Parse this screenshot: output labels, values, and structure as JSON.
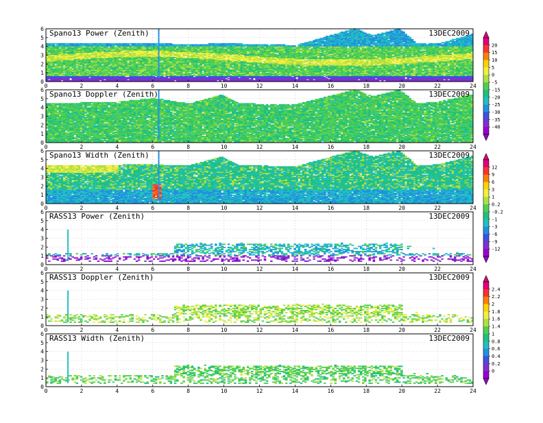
{
  "chart_data": [
    {
      "type": "heatmap",
      "title": "Spano13 Power (Zenith)",
      "date": "13DEC2009",
      "xlim": [
        0,
        24
      ],
      "ylim": [
        0,
        6
      ],
      "xticks": [
        "0",
        "2",
        "4",
        "6",
        "8",
        "10",
        "12",
        "14",
        "16",
        "18",
        "20",
        "22",
        "24"
      ],
      "yticks": [
        "0",
        "1",
        "2",
        "3",
        "4",
        "5",
        "6"
      ],
      "fill": "dense",
      "profile": "power",
      "top": [
        [
          0,
          4.3
        ],
        [
          6,
          4.3
        ],
        [
          8,
          4.2
        ],
        [
          10,
          4.3
        ],
        [
          14,
          4.1
        ],
        [
          17.3,
          6.0
        ],
        [
          18.3,
          5.2
        ],
        [
          19.8,
          6.0
        ],
        [
          20.8,
          4.3
        ],
        [
          22,
          4.3
        ],
        [
          24,
          5.4
        ]
      ]
    },
    {
      "type": "heatmap",
      "title": "Spano13 Doppler (Zenith)",
      "date": "13DEC2009",
      "xlim": [
        0,
        24
      ],
      "ylim": [
        0,
        6
      ],
      "xticks": [
        "0",
        "2",
        "4",
        "6",
        "8",
        "10",
        "12",
        "14",
        "16",
        "18",
        "20",
        "22",
        "24"
      ],
      "yticks": [
        "0",
        "1",
        "2",
        "3",
        "4",
        "5",
        "6"
      ],
      "fill": "dense",
      "profile": "doppler",
      "top": [
        [
          0,
          4.4
        ],
        [
          4,
          4.6
        ],
        [
          6,
          5.0
        ],
        [
          8,
          4.4
        ],
        [
          9.8,
          5.4
        ],
        [
          10.8,
          4.4
        ],
        [
          14,
          4.3
        ],
        [
          17.3,
          6.0
        ],
        [
          18.3,
          5.2
        ],
        [
          19.8,
          6.0
        ],
        [
          20.8,
          4.4
        ],
        [
          22,
          4.6
        ],
        [
          24,
          5.5
        ]
      ]
    },
    {
      "type": "heatmap",
      "title": "Spano13 Width (Zenith)",
      "date": "13DEC2009",
      "xlim": [
        0,
        24
      ],
      "ylim": [
        0,
        6
      ],
      "xticks": [
        "0",
        "2",
        "4",
        "6",
        "8",
        "10",
        "12",
        "14",
        "16",
        "18",
        "20",
        "22",
        "24"
      ],
      "yticks": [
        "0",
        "1",
        "2",
        "3",
        "4",
        "5",
        "6"
      ],
      "fill": "dense",
      "profile": "width",
      "top": [
        [
          0,
          4.3
        ],
        [
          6,
          4.4
        ],
        [
          8,
          4.3
        ],
        [
          9.8,
          5.3
        ],
        [
          10.8,
          4.3
        ],
        [
          14,
          4.2
        ],
        [
          17.3,
          6.0
        ],
        [
          18.3,
          5.3
        ],
        [
          19.8,
          6.0
        ],
        [
          20.8,
          4.3
        ],
        [
          22,
          4.4
        ],
        [
          24,
          5.4
        ]
      ]
    },
    {
      "type": "heatmap",
      "title": "RASS13 Power (Zenith)",
      "date": "13DEC2009",
      "xlim": [
        0,
        24
      ],
      "ylim": [
        0,
        6
      ],
      "xticks": [
        "0",
        "2",
        "4",
        "6",
        "8",
        "10",
        "12",
        "14",
        "16",
        "18",
        "20",
        "22",
        "24"
      ],
      "yticks": [
        "0",
        "1",
        "2",
        "3",
        "4",
        "5",
        "6"
      ],
      "fill": "sparse",
      "profile": "rasspower",
      "top": [
        [
          0,
          1.2
        ],
        [
          7,
          1.2
        ],
        [
          7.2,
          2.5
        ],
        [
          20,
          2.5
        ],
        [
          24,
          1.0
        ]
      ]
    },
    {
      "type": "heatmap",
      "title": "RASS13 Doppler (Zenith)",
      "date": "13DEC2009",
      "xlim": [
        0,
        24
      ],
      "ylim": [
        0,
        6
      ],
      "xticks": [
        "0",
        "2",
        "4",
        "6",
        "8",
        "10",
        "12",
        "14",
        "16",
        "18",
        "20",
        "22",
        "24"
      ],
      "yticks": [
        "0",
        "1",
        "2",
        "3",
        "4",
        "5",
        "6"
      ],
      "fill": "sparse",
      "profile": "rassdoppler",
      "top": [
        [
          0,
          1.2
        ],
        [
          7,
          1.2
        ],
        [
          7.2,
          2.4
        ],
        [
          20,
          2.4
        ],
        [
          24,
          0.8
        ]
      ]
    },
    {
      "type": "heatmap",
      "title": "RASS13 Width (Zenith)",
      "date": "13DEC2009",
      "xlim": [
        0,
        24
      ],
      "ylim": [
        0,
        6
      ],
      "xticks": [
        "0",
        "2",
        "4",
        "6",
        "8",
        "10",
        "12",
        "14",
        "16",
        "18",
        "20",
        "22",
        "24"
      ],
      "yticks": [
        "0",
        "1",
        "2",
        "3",
        "4",
        "5",
        "6"
      ],
      "fill": "sparse",
      "profile": "rasswidth",
      "top": [
        [
          0,
          1.2
        ],
        [
          7,
          1.2
        ],
        [
          7.2,
          2.4
        ],
        [
          20,
          2.4
        ],
        [
          24,
          0.8
        ]
      ]
    }
  ],
  "colorbars": [
    {
      "labels": [
        "20",
        "15",
        "10",
        "5",
        "0",
        "-5",
        "-15",
        "-20",
        "-25",
        "-30",
        "-35",
        "-40"
      ]
    },
    {
      "labels": [
        "12",
        "9",
        "6",
        "3",
        "1",
        "0.2",
        "-0.2",
        "-1",
        "-3",
        "-6",
        "-9",
        "-12"
      ]
    },
    {
      "labels": [
        "2.4",
        "2.2",
        "2",
        "1.8",
        "1.6",
        "1.4",
        "1",
        "0.8",
        "0.6",
        "0.4",
        "0.2",
        "0"
      ]
    }
  ],
  "palette": [
    "#e0007a",
    "#ff3030",
    "#ff8000",
    "#ffd200",
    "#f0f040",
    "#b0e040",
    "#50d050",
    "#20c080",
    "#20c0c0",
    "#2090e0",
    "#4050e0",
    "#8030d0",
    "#9a00d0"
  ]
}
